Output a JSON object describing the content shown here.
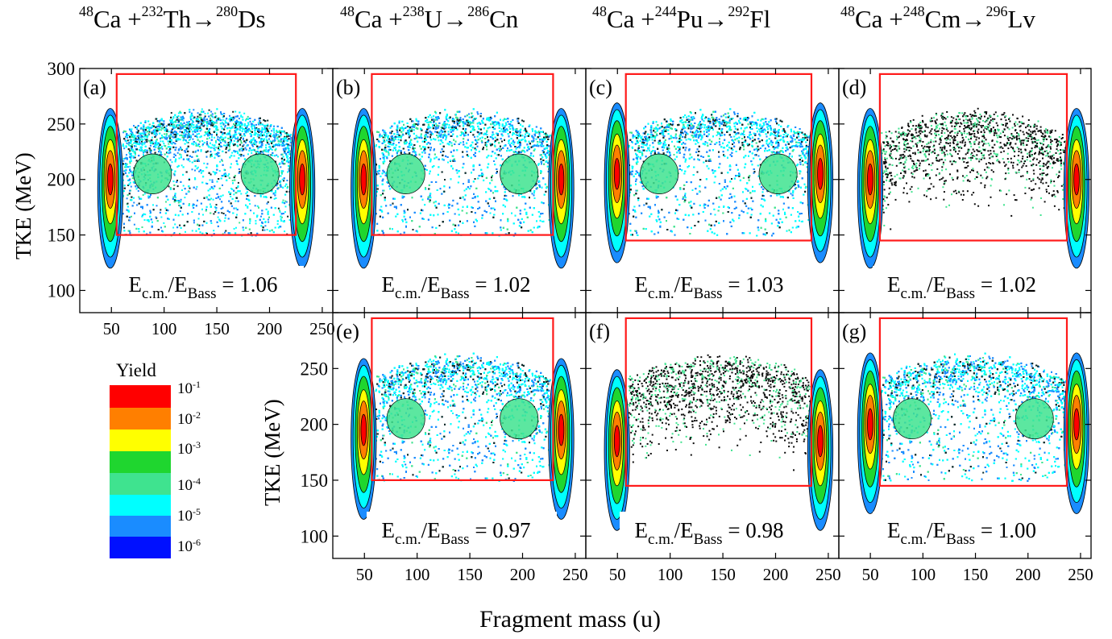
{
  "reactions": [
    {
      "projectile_mass": "48",
      "projectile": "Ca",
      "target_mass": "232",
      "target": "Th",
      "cn_mass": "280",
      "cn": "Ds"
    },
    {
      "projectile_mass": "48",
      "projectile": "Ca",
      "target_mass": "238",
      "target": "U",
      "cn_mass": "286",
      "cn": "Cn"
    },
    {
      "projectile_mass": "48",
      "projectile": "Ca",
      "target_mass": "244",
      "target": "Pu",
      "cn_mass": "292",
      "cn": "Fl"
    },
    {
      "projectile_mass": "48",
      "projectile": "Ca",
      "target_mass": "248",
      "target": "Cm",
      "cn_mass": "296",
      "cn": "Lv"
    }
  ],
  "chart_data": {
    "type": "heatmap",
    "xlabel": "Fragment mass (u)",
    "ylabel": "TKE (MeV)",
    "xlim": [
      20,
      260
    ],
    "ylim": [
      80,
      300
    ],
    "x_ticks": [
      50,
      100,
      150,
      200,
      250
    ],
    "y_ticks": [
      100,
      150,
      200,
      250,
      300
    ],
    "legend": {
      "title": "Yield",
      "entries": [
        {
          "base": "10",
          "exp": "-1",
          "color": "#ff0000"
        },
        {
          "base": "10",
          "exp": "-2",
          "color": "#ff7f00"
        },
        {
          "base": "10",
          "exp": "-3",
          "color": "#ffff00"
        },
        {
          "base": "10",
          "exp": "-4",
          "color": "#1fd62f"
        },
        {
          "base": "10",
          "exp": "-5",
          "color": "#3fe38f"
        },
        {
          "base": "10",
          "exp": "-6",
          "color": "#00ffff"
        }
      ],
      "extra_colors": [
        "#1a8cff",
        "#0010ff"
      ]
    },
    "panels": [
      {
        "label": "(a)",
        "ratio": "1.06",
        "cn_mass": 280,
        "window": {
          "mass": [
            55,
            225
          ],
          "tke": [
            150,
            295
          ]
        },
        "qf_peak_tke": 200
      },
      {
        "label": "(b)",
        "ratio": "1.02",
        "cn_mass": 286,
        "window": {
          "mass": [
            57,
            229
          ],
          "tke": [
            150,
            295
          ]
        },
        "qf_peak_tke": 200
      },
      {
        "label": "(c)",
        "ratio": "1.03",
        "cn_mass": 292,
        "window": {
          "mass": [
            58,
            234
          ],
          "tke": [
            145,
            295
          ]
        },
        "qf_peak_tke": 205
      },
      {
        "label": "(d)",
        "ratio": "1.02",
        "cn_mass": 296,
        "window": {
          "mass": [
            59,
            237
          ],
          "tke": [
            145,
            295
          ]
        },
        "qf_peak_tke": 200
      },
      {
        "label": "(e)",
        "ratio": "0.97",
        "cn_mass": 286,
        "window": {
          "mass": [
            57,
            229
          ],
          "tke": [
            150,
            295
          ]
        },
        "qf_peak_tke": 195
      },
      {
        "label": "(f)",
        "ratio": "0.98",
        "cn_mass": 292,
        "window": {
          "mass": [
            58,
            234
          ],
          "tke": [
            145,
            295
          ]
        },
        "qf_peak_tke": 185
      },
      {
        "label": "(g)",
        "ratio": "1.00",
        "cn_mass": 296,
        "window": {
          "mass": [
            59,
            237
          ],
          "tke": [
            145,
            295
          ]
        },
        "qf_peak_tke": 200
      }
    ]
  }
}
